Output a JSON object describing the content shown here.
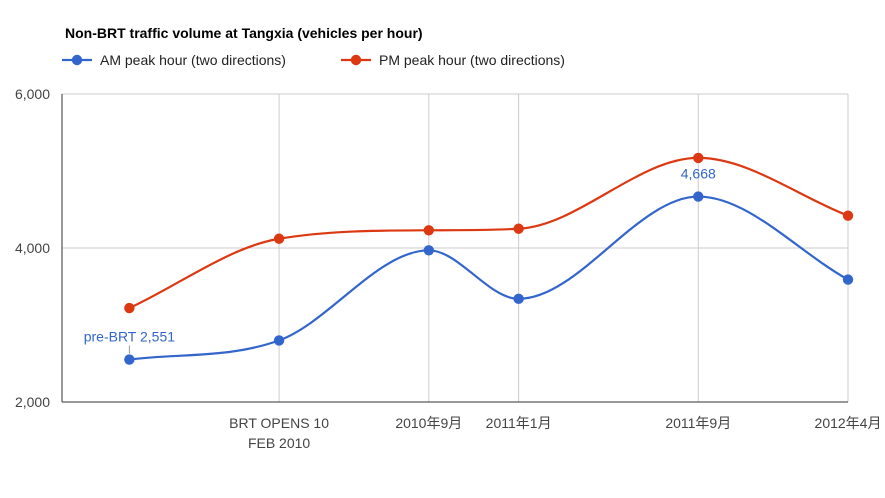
{
  "chart_data": {
    "type": "line",
    "title": "Non-BRT traffic volume at Tangxia (vehicles per hour)",
    "categories": [
      {
        "x": 0.0,
        "label": ""
      },
      {
        "x": 1.0,
        "label": "BRT OPENS 10 FEB 2010"
      },
      {
        "x": 2.0,
        "label": "2010年9月"
      },
      {
        "x": 2.6,
        "label": "2011年1月"
      },
      {
        "x": 3.8,
        "label": "2011年9月"
      },
      {
        "x": 4.8,
        "label": "2012年4月"
      }
    ],
    "series": [
      {
        "name": "AM peak hour (two directions)",
        "color": "#3366cc",
        "values": [
          2551,
          2800,
          3970,
          3340,
          4668,
          3590
        ]
      },
      {
        "name": "PM peak hour (two directions)",
        "color": "#dc3912",
        "values": [
          3220,
          4120,
          4230,
          4250,
          5170,
          4420
        ]
      }
    ],
    "annotations": [
      {
        "series": 0,
        "index": 0,
        "text": "pre-BRT 2,551"
      },
      {
        "series": 0,
        "index": 4,
        "text": "4,668"
      }
    ],
    "ylim": [
      2000,
      6000
    ],
    "yticks": [
      2000,
      4000,
      6000
    ],
    "ytick_labels": [
      "2,000",
      "4,000",
      "6,000"
    ],
    "xlim": [
      -0.45,
      4.8
    ],
    "xlabel": "",
    "ylabel": "",
    "grid": true,
    "legend_position": "top"
  }
}
